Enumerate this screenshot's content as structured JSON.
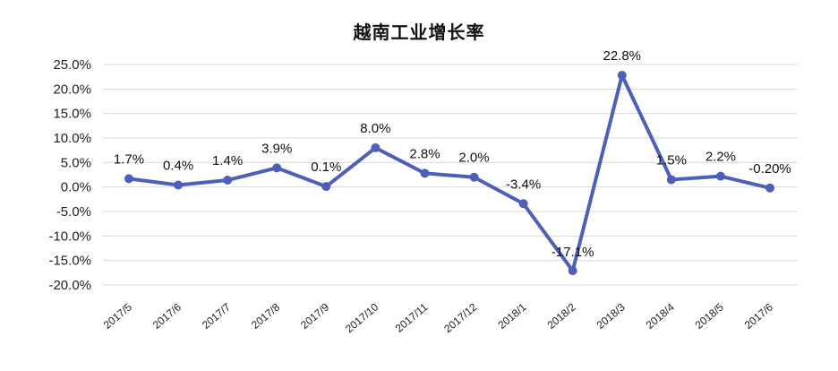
{
  "chart_data": {
    "type": "line",
    "title": "越南工业增长率",
    "xlabel": "",
    "ylabel": "",
    "categories": [
      "2017/5",
      "2017/6",
      "2017/7",
      "2017/8",
      "2017/9",
      "2017/10",
      "2017/11",
      "2017/12",
      "2018/1",
      "2018/2",
      "2018/3",
      "2018/4",
      "2018/5",
      "2017/6"
    ],
    "series": [
      {
        "values": [
          1.7,
          0.4,
          1.4,
          3.9,
          0.1,
          8.0,
          2.8,
          2.0,
          -3.4,
          -17.1,
          22.8,
          1.5,
          2.2,
          -0.2
        ],
        "data_labels": [
          "1.7%",
          "0.4%",
          "1.4%",
          "3.9%",
          "0.1%",
          "8.0%",
          "2.8%",
          "2.0%",
          "-3.4%",
          "-17.1%",
          "22.8%",
          "1.5%",
          "2.2%",
          "-0.20%"
        ],
        "color": "#4e5fb8"
      }
    ],
    "ylim": [
      -20,
      25
    ],
    "yticks": [
      25,
      20,
      15,
      10,
      5,
      0,
      -5,
      -10,
      -15,
      -20
    ],
    "ytick_labels": [
      "25.0%",
      "20.0%",
      "15.0%",
      "10.0%",
      "5.0%",
      "0.0%",
      "-5.0%",
      "-10.0%",
      "-15.0%",
      "-20.0%"
    ],
    "grid": true,
    "legend": "none"
  }
}
